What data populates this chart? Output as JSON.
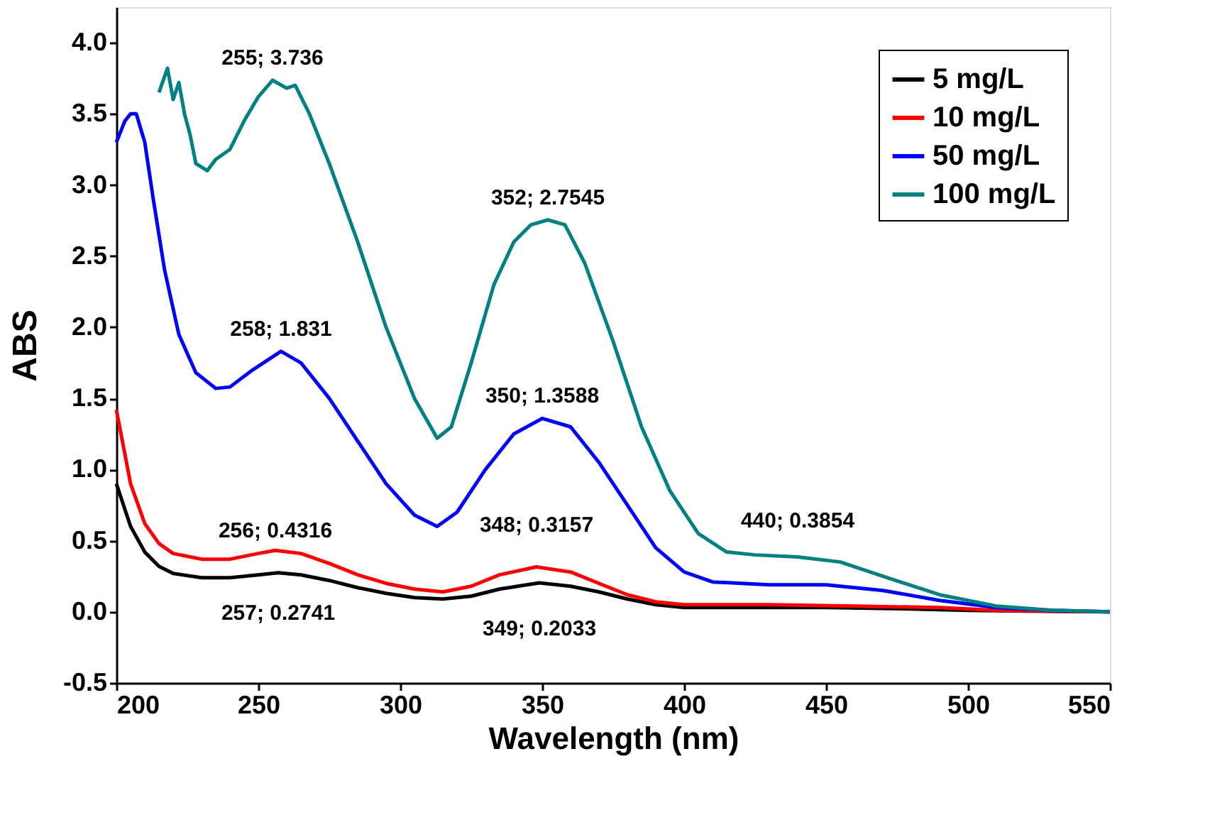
{
  "chart_data": {
    "type": "line",
    "xlabel": "Wavelength (nm)",
    "ylabel": "ABS",
    "xlim": [
      200,
      550
    ],
    "ylim": [
      -0.5,
      4.25
    ],
    "xticks": [
      200,
      250,
      300,
      350,
      400,
      450,
      500,
      550
    ],
    "yticks": [
      {
        "value": -0.5,
        "label": "-0.5"
      },
      {
        "value": 0,
        "label": "0.0"
      },
      {
        "value": 0.5,
        "label": "0.5"
      },
      {
        "value": 1,
        "label": "1.0"
      },
      {
        "value": 1.5,
        "label": "1.5"
      },
      {
        "value": 2,
        "label": "2.0"
      },
      {
        "value": 2.5,
        "label": "2.5"
      },
      {
        "value": 3,
        "label": "3.0"
      },
      {
        "value": 3.5,
        "label": "3.5"
      },
      {
        "value": 4,
        "label": "4.0"
      }
    ],
    "grid": false,
    "legend": "top right",
    "marker": "none",
    "line_style": "solid",
    "series": [
      {
        "name": "5 mg/L",
        "color": "#000000",
        "x": [
          200,
          205,
          210,
          215,
          220,
          230,
          240,
          250,
          257,
          265,
          275,
          285,
          295,
          305,
          315,
          325,
          335,
          349,
          360,
          370,
          380,
          390,
          400,
          420,
          450,
          480,
          500,
          520,
          550
        ],
        "values": [
          0.9,
          0.6,
          0.42,
          0.32,
          0.27,
          0.24,
          0.24,
          0.26,
          0.2741,
          0.26,
          0.22,
          0.17,
          0.13,
          0.1,
          0.09,
          0.11,
          0.16,
          0.2033,
          0.18,
          0.14,
          0.09,
          0.05,
          0.03,
          0.03,
          0.03,
          0.02,
          0.01,
          0.005,
          0
        ]
      },
      {
        "name": "10 mg/L",
        "color": "#ff0000",
        "x": [
          200,
          205,
          210,
          215,
          220,
          230,
          240,
          250,
          256,
          265,
          275,
          285,
          295,
          305,
          315,
          325,
          335,
          348,
          360,
          370,
          380,
          390,
          400,
          430,
          460,
          490,
          510,
          530,
          550
        ],
        "values": [
          1.42,
          0.9,
          0.62,
          0.48,
          0.41,
          0.37,
          0.37,
          0.41,
          0.4316,
          0.41,
          0.34,
          0.26,
          0.2,
          0.16,
          0.14,
          0.18,
          0.26,
          0.3157,
          0.28,
          0.2,
          0.12,
          0.07,
          0.05,
          0.05,
          0.04,
          0.03,
          0.01,
          0.005,
          0
        ]
      },
      {
        "name": "50 mg/L",
        "color": "#0000ff",
        "x": [
          200,
          203,
          205,
          207,
          210,
          213,
          217,
          222,
          228,
          235,
          240,
          248,
          258,
          265,
          275,
          285,
          295,
          305,
          313,
          320,
          330,
          340,
          350,
          360,
          370,
          380,
          390,
          400,
          410,
          430,
          450,
          470,
          490,
          510,
          530,
          550
        ],
        "values": [
          3.3,
          3.45,
          3.5,
          3.5,
          3.3,
          2.9,
          2.4,
          1.95,
          1.68,
          1.57,
          1.58,
          1.7,
          1.831,
          1.75,
          1.5,
          1.2,
          0.9,
          0.68,
          0.6,
          0.7,
          1.0,
          1.25,
          1.3588,
          1.3,
          1.05,
          0.75,
          0.45,
          0.28,
          0.21,
          0.19,
          0.19,
          0.15,
          0.08,
          0.03,
          0.01,
          0
        ]
      },
      {
        "name": "100 mg/L",
        "color": "#008080",
        "x": [
          215,
          218,
          220,
          222,
          224,
          226,
          228,
          232,
          235,
          240,
          245,
          250,
          255,
          260,
          263,
          268,
          275,
          285,
          295,
          305,
          313,
          318,
          325,
          333,
          340,
          346,
          352,
          358,
          365,
          375,
          385,
          395,
          405,
          415,
          425,
          440,
          455,
          470,
          490,
          510,
          530,
          550
        ],
        "values": [
          3.65,
          3.82,
          3.6,
          3.72,
          3.5,
          3.35,
          3.15,
          3.1,
          3.18,
          3.25,
          3.45,
          3.62,
          3.736,
          3.68,
          3.7,
          3.5,
          3.15,
          2.6,
          2.0,
          1.5,
          1.22,
          1.3,
          1.75,
          2.3,
          2.6,
          2.72,
          2.7545,
          2.72,
          2.45,
          1.9,
          1.3,
          0.85,
          0.55,
          0.42,
          0.4,
          0.3854,
          0.35,
          0.25,
          0.12,
          0.04,
          0.01,
          0
        ]
      }
    ],
    "annotations": [
      {
        "text": "255; 3.736",
        "x": 255,
        "y": 3.736
      },
      {
        "text": "258; 1.831",
        "x": 258,
        "y": 1.831
      },
      {
        "text": "352; 2.7545",
        "x": 352,
        "y": 2.7545
      },
      {
        "text": "350; 1.3588",
        "x": 350,
        "y": 1.3588
      },
      {
        "text": "256; 0.4316",
        "x": 256,
        "y": 0.4316
      },
      {
        "text": "348; 0.3157",
        "x": 348,
        "y": 0.3157
      },
      {
        "text": "257; 0.2741",
        "x": 257,
        "y": 0.2741
      },
      {
        "text": "349; 0.2033",
        "x": 349,
        "y": 0.2033
      },
      {
        "text": "440; 0.3854",
        "x": 440,
        "y": 0.3854
      }
    ]
  }
}
